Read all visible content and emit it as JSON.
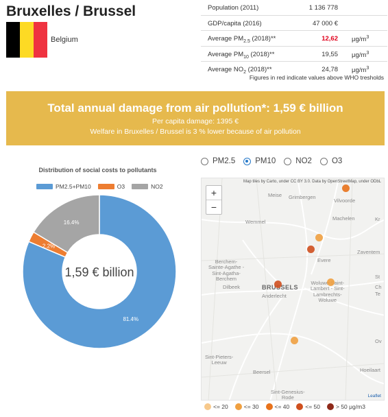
{
  "city": {
    "title": "Bruxelles / Brussel",
    "country": "Belgium",
    "flag_colors": [
      "#000000",
      "#fdda24",
      "#ef3340"
    ]
  },
  "stats": {
    "population": {
      "label": "Population (2011)",
      "value": "1 136 778"
    },
    "gdp": {
      "label": "GDP/capita (2016)",
      "value": "47 000 €"
    },
    "pm25": {
      "label_pre": "Average PM",
      "label_sub": "2.5",
      "label_post": " (2018)**",
      "value": "12,62",
      "unit": "μg/m",
      "unit_sup": "3"
    },
    "pm10": {
      "label_pre": "Average PM",
      "label_sub": "10",
      "label_post": " (2018)**",
      "value": "19,55",
      "unit": "μg/m",
      "unit_sup": "3"
    },
    "no2": {
      "label_pre": "Average NO",
      "label_sub": "2",
      "label_post": " (2018)**",
      "value": "24,78",
      "unit": "μg/m",
      "unit_sup": "3"
    },
    "note": "Figures in red indicate values above WHO tresholds"
  },
  "banner": {
    "headline": "Total annual damage from air pollution*: 1,59 € billion",
    "per_capita": "Per capita damage: 1395 €",
    "welfare": "Welfare in Bruxelles / Brussel is 3 % lower because of air pollution",
    "color": "#e6b94d"
  },
  "chart_data": {
    "type": "pie",
    "title": "Distribution of social costs to pollutants",
    "center_label": "1,59 € billion",
    "labels": [
      "PM2.5+PM10",
      "O3",
      "NO2"
    ],
    "values": [
      81.4,
      2.2,
      16.4
    ],
    "value_labels": [
      "81.4%",
      "2.2%",
      "16.4%"
    ],
    "colors": [
      "#5b9bd5",
      "#ed7d31",
      "#a5a5a5"
    ],
    "legend_position": "top"
  },
  "pollutant_options": [
    {
      "label": "PM2.5",
      "selected": false
    },
    {
      "label": "PM10",
      "selected": true
    },
    {
      "label": "NO2",
      "selected": false
    },
    {
      "label": "O3",
      "selected": false
    }
  ],
  "map": {
    "attribution": "Map tiles by Carto, under CC BY 3.0. Data by OpenStreetMap, under ODbL",
    "zoom_in": "+",
    "zoom_out": "−",
    "leaflet_link": "Leaflet",
    "places": {
      "meise": "Meise",
      "grimbergen": "Grimbergen",
      "vilvoorde": "Vilvoorde",
      "wemmel": "Wemmel",
      "machelen": "Machelen",
      "evere": "Evere",
      "zaventem": "Zaventem",
      "berchem": "Berchem-\nSainte-Agathe -\nSint-Agatha-\nBerchem",
      "dilbeek": "Dilbeek",
      "brussels": "BRUSSELS",
      "anderlecht": "Anderlecht",
      "woluwe": "Woluwe-Saint-\nLambert - Sint-\nLambrechts-\nWoluwe",
      "sintpieters": "Sint-Pieters-\nLeeuw",
      "beersel": "Beersel",
      "sintgenesius": "Sint-Genesius-\nRode",
      "hoeilaart": "Hoeilaart",
      "kr": "Kr",
      "st": "St",
      "ch": "Ch",
      "te": "Te",
      "ov": "Ov"
    },
    "stations": [
      {
        "level": 2
      },
      {
        "level": 1
      },
      {
        "level": 3
      },
      {
        "level": 3
      },
      {
        "level": 1
      },
      {
        "level": 1
      }
    ],
    "legend": [
      {
        "label": "<= 20",
        "color": "#f7c98c"
      },
      {
        "label": "<= 30",
        "color": "#f0a040"
      },
      {
        "label": "<= 40",
        "color": "#e8721b"
      },
      {
        "label": "<= 50",
        "color": "#cf4f1e"
      },
      {
        "label": "> 50 μg/m3",
        "color": "#8e2a1a"
      }
    ]
  }
}
